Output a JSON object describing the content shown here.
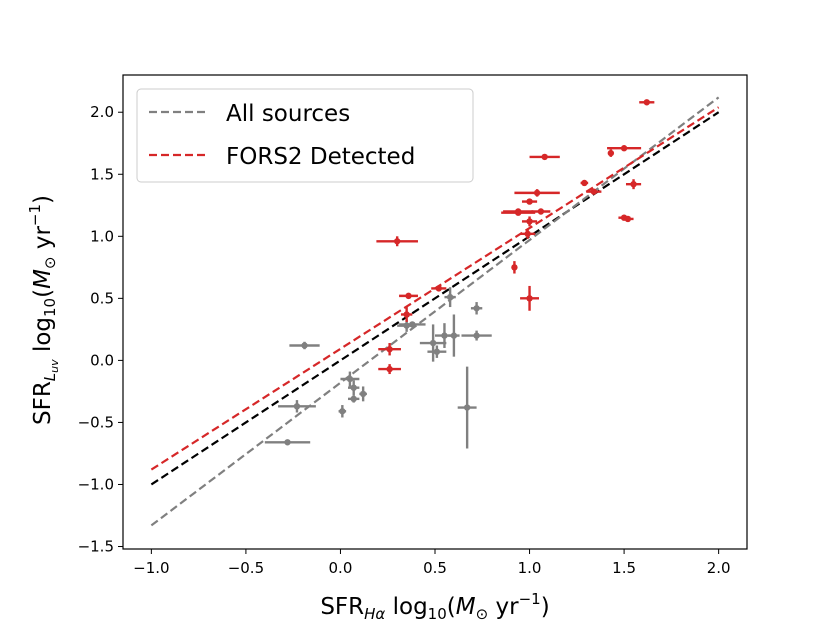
{
  "chart_data": {
    "type": "scatter",
    "title": "",
    "xlabel": {
      "main": "SFR",
      "sub": "Hα",
      "rest": " log",
      "sub2": "10",
      "unit_open": "(",
      "unit_m": "M",
      "unit_sub": "⊙",
      "unit_yr": " yr",
      "unit_sup": "−1",
      "unit_close": ")"
    },
    "ylabel": {
      "main": "SFR",
      "sub": "L",
      "subsub": "uv",
      "rest": " log",
      "sub2": "10",
      "unit_open": "(",
      "unit_m": "M",
      "unit_sub": "⊙",
      "unit_yr": " yr",
      "unit_sup": "−1",
      "unit_close": ")"
    },
    "xlim": [
      -1.15,
      2.15
    ],
    "ylim": [
      -1.52,
      2.3
    ],
    "xticks": [
      -1.0,
      -0.5,
      0.0,
      0.5,
      1.0,
      1.5,
      2.0
    ],
    "xtick_labels": [
      "−1.0",
      "−0.5",
      "0.0",
      "0.5",
      "1.0",
      "1.5",
      "2.0"
    ],
    "yticks": [
      -1.5,
      -1.0,
      -0.5,
      0.0,
      0.5,
      1.0,
      1.5,
      2.0
    ],
    "ytick_labels": [
      "−1.5",
      "−1.0",
      "−0.5",
      "0.0",
      "0.5",
      "1.0",
      "1.5",
      "2.0"
    ],
    "legend": {
      "placement": "top-left",
      "entries": [
        {
          "label": "All sources",
          "color": "#808080",
          "style": "dashed"
        },
        {
          "label": "FORS2 Detected",
          "color": "#d62728",
          "style": "dashed"
        }
      ]
    },
    "lines": [
      {
        "name": "one-to-one",
        "color": "#000000",
        "style": "dashed",
        "x": [
          -1.0,
          2.0
        ],
        "y": [
          -1.0,
          2.0
        ]
      },
      {
        "name": "All sources fit",
        "color": "#808080",
        "style": "dashed",
        "x": [
          -1.0,
          2.0
        ],
        "y": [
          -1.33,
          2.12
        ]
      },
      {
        "name": "FORS2 Detected fit",
        "color": "#d62728",
        "style": "dashed",
        "x": [
          -1.0,
          2.0
        ],
        "y": [
          -0.88,
          2.04
        ]
      }
    ],
    "series": [
      {
        "name": "All sources",
        "color": "#808080",
        "points": [
          {
            "x": -0.28,
            "y": -0.66,
            "xerr": 0.12,
            "yerr": 0.0
          },
          {
            "x": -0.23,
            "y": -0.37,
            "xerr": 0.1,
            "yerr": 0.05
          },
          {
            "x": -0.19,
            "y": 0.12,
            "xerr": 0.08,
            "yerr": 0.03
          },
          {
            "x": 0.01,
            "y": -0.41,
            "xerr": 0.02,
            "yerr": 0.05
          },
          {
            "x": 0.05,
            "y": -0.15,
            "xerr": 0.05,
            "yerr": 0.06
          },
          {
            "x": 0.07,
            "y": -0.22,
            "xerr": 0.03,
            "yerr": 0.06
          },
          {
            "x": 0.12,
            "y": -0.27,
            "xerr": 0.02,
            "yerr": 0.06
          },
          {
            "x": 0.07,
            "y": -0.31,
            "xerr": 0.03,
            "yerr": 0.03
          },
          {
            "x": 0.35,
            "y": 0.28,
            "xerr": 0.05,
            "yerr": 0.05
          },
          {
            "x": 0.38,
            "y": 0.29,
            "xerr": 0.07,
            "yerr": 0.02
          },
          {
            "x": 0.49,
            "y": 0.14,
            "xerr": 0.07,
            "yerr": 0.15
          },
          {
            "x": 0.51,
            "y": 0.07,
            "xerr": 0.05,
            "yerr": 0.05
          },
          {
            "x": 0.55,
            "y": 0.2,
            "xerr": 0.05,
            "yerr": 0.1
          },
          {
            "x": 0.58,
            "y": 0.51,
            "xerr": 0.03,
            "yerr": 0.08
          },
          {
            "x": 0.6,
            "y": 0.2,
            "xerr": 0.03,
            "yerr": 0.17
          },
          {
            "x": 0.67,
            "y": -0.38,
            "xerr": 0.05,
            "yerr": 0.33
          },
          {
            "x": 0.72,
            "y": 0.42,
            "xerr": 0.03,
            "yerr": 0.05
          },
          {
            "x": 0.72,
            "y": 0.2,
            "xerr": 0.08,
            "yerr": 0.04
          }
        ]
      },
      {
        "name": "FORS2 Detected",
        "color": "#d62728",
        "points": [
          {
            "x": 0.26,
            "y": 0.09,
            "xerr": 0.06,
            "yerr": 0.05
          },
          {
            "x": 0.26,
            "y": -0.07,
            "xerr": 0.06,
            "yerr": 0.04
          },
          {
            "x": 0.3,
            "y": 0.96,
            "xerr": 0.11,
            "yerr": 0.04
          },
          {
            "x": 0.35,
            "y": 0.37,
            "xerr": 0.03,
            "yerr": 0.06
          },
          {
            "x": 0.36,
            "y": 0.52,
            "xerr": 0.05,
            "yerr": 0.02
          },
          {
            "x": 0.52,
            "y": 0.58,
            "xerr": 0.04,
            "yerr": 0.02
          },
          {
            "x": 0.92,
            "y": 0.75,
            "xerr": 0.01,
            "yerr": 0.05
          },
          {
            "x": 0.94,
            "y": 1.2,
            "xerr": 0.08,
            "yerr": 0.02
          },
          {
            "x": 0.94,
            "y": 1.19,
            "xerr": 0.09,
            "yerr": 0.02
          },
          {
            "x": 0.99,
            "y": 1.02,
            "xerr": 0.04,
            "yerr": 0.04
          },
          {
            "x": 1.0,
            "y": 0.5,
            "xerr": 0.05,
            "yerr": 0.1
          },
          {
            "x": 1.0,
            "y": 1.12,
            "xerr": 0.04,
            "yerr": 0.04
          },
          {
            "x": 1.0,
            "y": 1.28,
            "xerr": 0.04,
            "yerr": 0.02
          },
          {
            "x": 1.04,
            "y": 1.35,
            "xerr": 0.12,
            "yerr": 0.03
          },
          {
            "x": 1.06,
            "y": 1.2,
            "xerr": 0.05,
            "yerr": 0.02
          },
          {
            "x": 1.08,
            "y": 1.64,
            "xerr": 0.08,
            "yerr": 0.02
          },
          {
            "x": 1.29,
            "y": 1.43,
            "xerr": 0.02,
            "yerr": 0.02
          },
          {
            "x": 1.34,
            "y": 1.36,
            "xerr": 0.04,
            "yerr": 0.02
          },
          {
            "x": 1.43,
            "y": 1.67,
            "xerr": 0.01,
            "yerr": 0.03
          },
          {
            "x": 1.5,
            "y": 1.71,
            "xerr": 0.09,
            "yerr": 0.02
          },
          {
            "x": 1.5,
            "y": 1.15,
            "xerr": 0.03,
            "yerr": 0.02
          },
          {
            "x": 1.52,
            "y": 1.14,
            "xerr": 0.03,
            "yerr": 0.02
          },
          {
            "x": 1.55,
            "y": 1.42,
            "xerr": 0.04,
            "yerr": 0.04
          },
          {
            "x": 1.62,
            "y": 2.08,
            "xerr": 0.04,
            "yerr": 0.02
          }
        ]
      }
    ]
  }
}
